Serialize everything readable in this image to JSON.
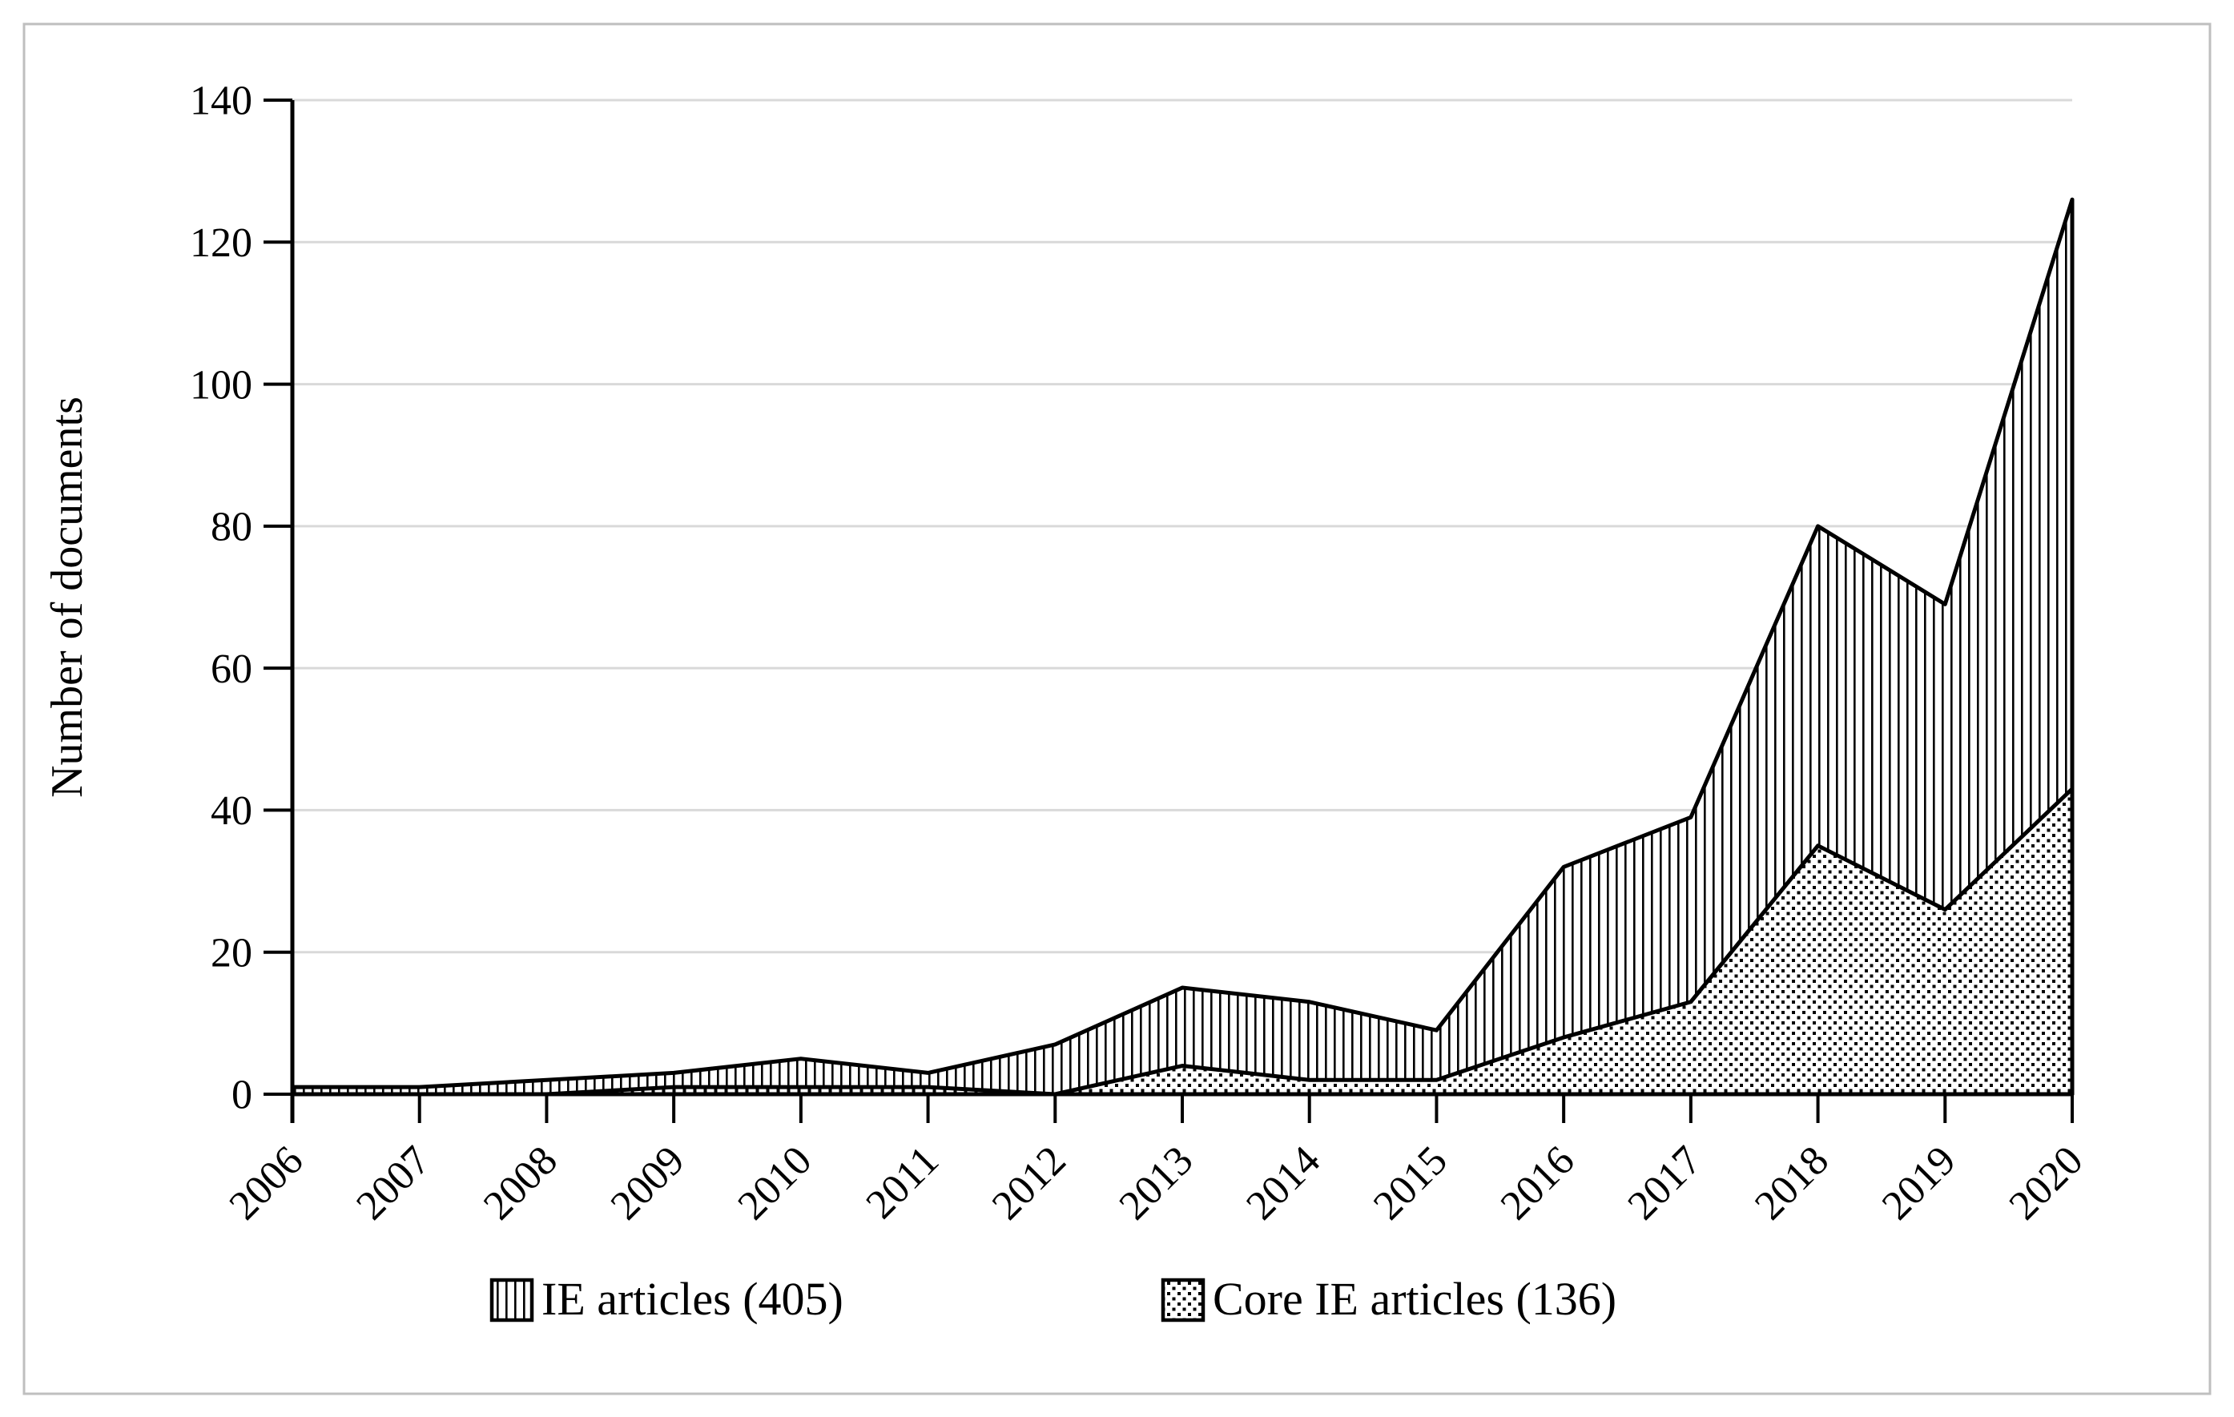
{
  "figure": {
    "background": "#ffffff",
    "card_border_color": "#bfbfbf"
  },
  "chart_data": {
    "type": "area",
    "title": "",
    "xlabel": "",
    "ylabel": "Number of documents",
    "categories": [
      "2006",
      "2007",
      "2008",
      "2009",
      "2010",
      "2011",
      "2012",
      "2013",
      "2014",
      "2015",
      "2016",
      "2017",
      "2018",
      "2019",
      "2020"
    ],
    "series": [
      {
        "name": "IE articles (405)",
        "total": 405,
        "pattern": "vertical-hatch",
        "values": [
          1,
          1,
          2,
          3,
          5,
          3,
          7,
          15,
          13,
          9,
          32,
          39,
          80,
          69,
          126
        ]
      },
      {
        "name": "Core IE articles (136)",
        "total": 136,
        "pattern": "dots",
        "values": [
          0,
          0,
          0,
          1,
          1,
          1,
          0,
          4,
          2,
          2,
          8,
          13,
          35,
          26,
          43
        ]
      }
    ],
    "ylim": [
      0,
      140
    ],
    "yticks": [
      0,
      20,
      40,
      60,
      80,
      100,
      120,
      140
    ],
    "grid": "horizontal",
    "legend_position": "bottom",
    "colors": {
      "axis": "#000000",
      "gridline": "#d9d9d9",
      "series_border": "#000000",
      "pattern_ink": "#000000",
      "area_fill": "#ffffff"
    }
  }
}
